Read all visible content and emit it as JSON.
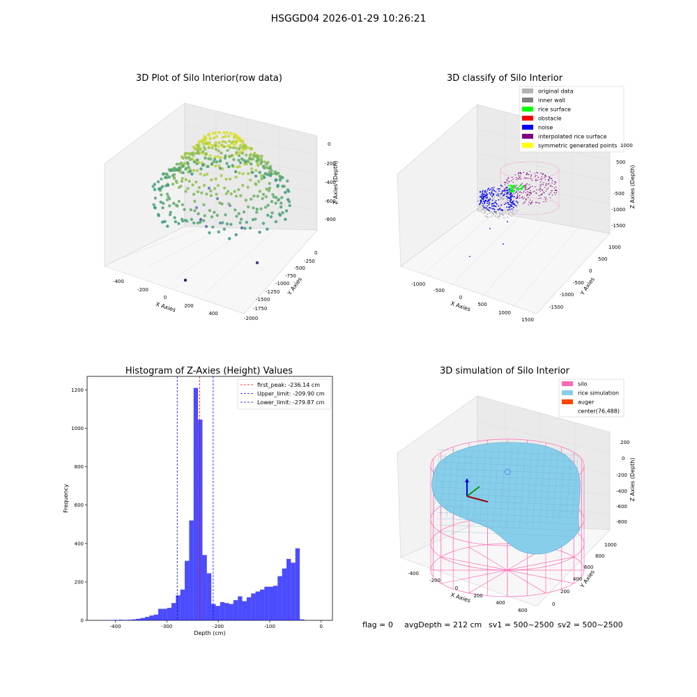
{
  "suptitle": "HSGGD04 2026-01-29 10:26:21",
  "plots": {
    "raw": {
      "title": "3D Plot of Silo Interior(row data)",
      "xlabel": "X Axies",
      "ylabel": "Y Axies",
      "zlabel": "Z Axies (Depth)",
      "xticks": [
        "-400",
        "-200",
        "0",
        "200",
        "400"
      ],
      "yticks": [
        "0",
        "-250",
        "-500",
        "-750",
        "-1000",
        "-1250",
        "-1500",
        "-1750",
        "-2000"
      ],
      "zticks": [
        "0",
        "-200",
        "-400",
        "-600",
        "-800"
      ]
    },
    "classify": {
      "title": "3D classify of Silo Interior",
      "xlabel": "X Axies",
      "ylabel": "Y Axies",
      "zlabel": "Z Axies (Depth)",
      "xticks": [
        "-1000",
        "-500",
        "0",
        "500",
        "1000",
        "1500"
      ],
      "yticks": [
        "1000",
        "500",
        "0",
        "-500",
        "-1000",
        "-1500"
      ],
      "zticks": [
        "1000",
        "500",
        "0",
        "-500",
        "-1000",
        "-1500"
      ],
      "legend": [
        {
          "label": "original data",
          "color": "#b3b3b3"
        },
        {
          "label": "inner wall",
          "color": "#808080"
        },
        {
          "label": "rice surface",
          "color": "#00ff00"
        },
        {
          "label": "obstacle",
          "color": "#ff0000"
        },
        {
          "label": "noise",
          "color": "#0000ff"
        },
        {
          "label": "interpolated rice surface",
          "color": "#800080"
        },
        {
          "label": "symmetric generated points",
          "color": "#ffff00"
        }
      ]
    },
    "sim": {
      "title": "3D simulation of Silo Interior",
      "xlabel": "X Axies",
      "ylabel": "Y Axies",
      "zlabel": "Z Axies (Depth)",
      "xticks": [
        "-400",
        "-200",
        "0",
        "200",
        "400",
        "600"
      ],
      "yticks": [
        "0",
        "200",
        "400",
        "600",
        "800",
        "1000"
      ],
      "zticks": [
        "200",
        "0",
        "-200",
        "-400",
        "-600",
        "-800"
      ],
      "legend": [
        {
          "label": "silo",
          "color": "#ff69b4"
        },
        {
          "label": "rice simulation",
          "color": "#87ceeb"
        },
        {
          "label": "auger",
          "color": "#ff4500"
        },
        {
          "label": "center(76,488)",
          "color": ""
        }
      ]
    }
  },
  "chart_data": {
    "type": "bar",
    "title": "Histogram of Z-Axies (Height) Values",
    "xlabel": "Depth (cm)",
    "ylabel": "Frequency",
    "xlim": [
      -455,
      22
    ],
    "ylim": [
      0,
      1270
    ],
    "xticks": [
      -400,
      -300,
      -200,
      -100,
      0
    ],
    "yticks": [
      0,
      200,
      400,
      600,
      800,
      1000,
      1200
    ],
    "bar_color": "#0000ff",
    "bin_width": 8.6,
    "bin_start": -420,
    "values": [
      1,
      1,
      2,
      3,
      2,
      3,
      5,
      8,
      12,
      18,
      25,
      30,
      60,
      60,
      65,
      90,
      130,
      160,
      310,
      520,
      1210,
      1045,
      340,
      245,
      85,
      75,
      95,
      90,
      85,
      105,
      125,
      100,
      120,
      140,
      150,
      160,
      175,
      175,
      180,
      230,
      270,
      320,
      300,
      375,
      5
    ],
    "vlines": [
      {
        "x": -236.14,
        "color": "#ff0000",
        "label": "first_peak: -236.14 cm"
      },
      {
        "x": -209.9,
        "color": "#0000ff",
        "label": "Upper_limit: -209.90 cm"
      },
      {
        "x": -279.87,
        "color": "#0000ff",
        "label": "Lower_limit: -279.87 cm"
      }
    ],
    "legend_position": "top-right"
  },
  "footer": {
    "flag": "flag = 0",
    "avg": "avgDepth = 212 cm",
    "sv1": "sv1 = 500~2500",
    "sv2": "sv2 = 500~2500"
  }
}
